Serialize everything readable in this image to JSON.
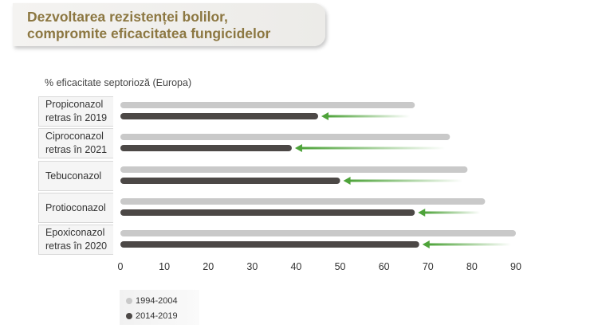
{
  "title": {
    "line1": "Dezvoltarea rezistenței bolilor,",
    "line2": "compromite eficacitatea fungicidelor"
  },
  "colors": {
    "title": "#8c7741",
    "series_1994": "#c9c9c9",
    "series_2014": "#4c4846",
    "arrow": "#4ea33a"
  },
  "chart_data": {
    "type": "bar",
    "orientation": "horizontal",
    "subtitle": "% eficacitate septorioză (Europa)",
    "categories": [
      "Propiconazol\nretras în 2019",
      "Ciproconazol\nretras în 2021",
      "Tebuconazol",
      "Protioconazol",
      "Epoxiconazol\nretras în 2020"
    ],
    "series": [
      {
        "name": "1994-2004",
        "values": [
          67,
          75,
          79,
          83,
          90
        ]
      },
      {
        "name": "2014-2019",
        "values": [
          45,
          39,
          50,
          67,
          68
        ]
      }
    ],
    "x_ticks": [
      "0",
      "10",
      "20",
      "30",
      "40",
      "50",
      "60",
      "70",
      "80",
      "90"
    ],
    "xlim": [
      0,
      90
    ],
    "grid": false,
    "legend_position": "bottom-left",
    "annotations": "green arrows pointing from the 1994-2004 value to the 2014-2019 value"
  },
  "legend": [
    {
      "label": "1994-2004"
    },
    {
      "label": "2014-2019"
    }
  ]
}
